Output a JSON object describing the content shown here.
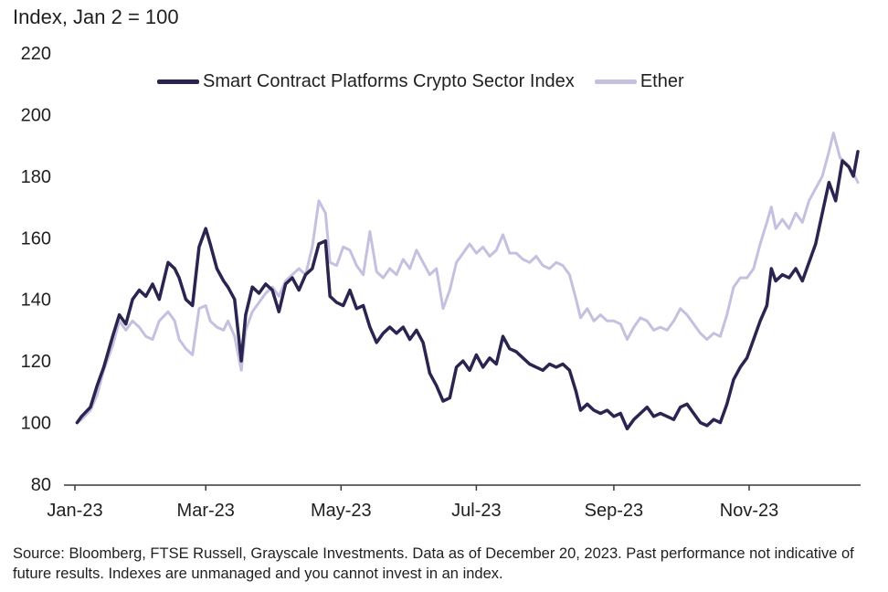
{
  "chart_data": {
    "type": "line",
    "title": "",
    "ylabel": "Index, Jan 2 = 100",
    "xlabel": "",
    "ylim": [
      80,
      220
    ],
    "yticks": [
      80,
      100,
      120,
      140,
      160,
      180,
      200,
      220
    ],
    "xlim": [
      "2023-01-02",
      "2023-12-20"
    ],
    "xticks": [
      {
        "date": "2023-01-01",
        "label": "Jan-23"
      },
      {
        "date": "2023-03-01",
        "label": "Mar-23"
      },
      {
        "date": "2023-05-01",
        "label": "May-23"
      },
      {
        "date": "2023-07-01",
        "label": "Jul-23"
      },
      {
        "date": "2023-09-01",
        "label": "Sep-23"
      },
      {
        "date": "2023-11-01",
        "label": "Nov-23"
      }
    ],
    "grid": false,
    "legend_position": "top",
    "series": [
      {
        "name": "Smart Contract Platforms Crypto Sector Index",
        "color": "#2a2550",
        "points": [
          [
            "2023-01-02",
            100
          ],
          [
            "2023-01-04",
            102
          ],
          [
            "2023-01-08",
            105
          ],
          [
            "2023-01-11",
            112
          ],
          [
            "2023-01-14",
            118
          ],
          [
            "2023-01-18",
            128
          ],
          [
            "2023-01-21",
            135
          ],
          [
            "2023-01-24",
            132
          ],
          [
            "2023-01-27",
            140
          ],
          [
            "2023-01-30",
            143
          ],
          [
            "2023-02-02",
            141
          ],
          [
            "2023-02-05",
            145
          ],
          [
            "2023-02-08",
            140
          ],
          [
            "2023-02-12",
            152
          ],
          [
            "2023-02-15",
            150
          ],
          [
            "2023-02-17",
            147
          ],
          [
            "2023-02-20",
            140
          ],
          [
            "2023-02-23",
            138
          ],
          [
            "2023-02-26",
            157
          ],
          [
            "2023-03-01",
            163
          ],
          [
            "2023-03-03",
            158
          ],
          [
            "2023-03-06",
            150
          ],
          [
            "2023-03-09",
            146
          ],
          [
            "2023-03-11",
            144
          ],
          [
            "2023-03-14",
            140
          ],
          [
            "2023-03-17",
            120
          ],
          [
            "2023-03-19",
            135
          ],
          [
            "2023-03-22",
            144
          ],
          [
            "2023-03-25",
            142
          ],
          [
            "2023-03-28",
            145
          ],
          [
            "2023-03-31",
            143
          ],
          [
            "2023-04-03",
            136
          ],
          [
            "2023-04-06",
            145
          ],
          [
            "2023-04-09",
            147
          ],
          [
            "2023-04-12",
            143
          ],
          [
            "2023-04-15",
            148
          ],
          [
            "2023-04-18",
            150
          ],
          [
            "2023-04-21",
            158
          ],
          [
            "2023-04-24",
            159
          ],
          [
            "2023-04-26",
            141
          ],
          [
            "2023-04-29",
            139
          ],
          [
            "2023-05-02",
            138
          ],
          [
            "2023-05-05",
            143
          ],
          [
            "2023-05-08",
            137
          ],
          [
            "2023-05-11",
            138
          ],
          [
            "2023-05-14",
            131
          ],
          [
            "2023-05-17",
            126
          ],
          [
            "2023-05-20",
            129
          ],
          [
            "2023-05-23",
            131
          ],
          [
            "2023-05-26",
            129
          ],
          [
            "2023-05-29",
            131
          ],
          [
            "2023-06-01",
            127
          ],
          [
            "2023-06-04",
            130
          ],
          [
            "2023-06-07",
            126
          ],
          [
            "2023-06-10",
            116
          ],
          [
            "2023-06-13",
            112
          ],
          [
            "2023-06-16",
            107
          ],
          [
            "2023-06-19",
            108
          ],
          [
            "2023-06-22",
            118
          ],
          [
            "2023-06-25",
            120
          ],
          [
            "2023-06-28",
            117
          ],
          [
            "2023-07-01",
            122
          ],
          [
            "2023-07-04",
            118
          ],
          [
            "2023-07-07",
            121
          ],
          [
            "2023-07-10",
            119
          ],
          [
            "2023-07-13",
            128
          ],
          [
            "2023-07-16",
            124
          ],
          [
            "2023-07-19",
            123
          ],
          [
            "2023-07-22",
            121
          ],
          [
            "2023-07-25",
            119
          ],
          [
            "2023-07-28",
            118
          ],
          [
            "2023-07-31",
            117
          ],
          [
            "2023-08-03",
            119
          ],
          [
            "2023-08-06",
            118
          ],
          [
            "2023-08-09",
            119
          ],
          [
            "2023-08-12",
            117
          ],
          [
            "2023-08-15",
            110
          ],
          [
            "2023-08-17",
            104
          ],
          [
            "2023-08-20",
            106
          ],
          [
            "2023-08-23",
            104
          ],
          [
            "2023-08-26",
            103
          ],
          [
            "2023-08-29",
            104
          ],
          [
            "2023-09-01",
            102
          ],
          [
            "2023-09-04",
            103
          ],
          [
            "2023-09-07",
            98
          ],
          [
            "2023-09-10",
            101
          ],
          [
            "2023-09-13",
            103
          ],
          [
            "2023-09-16",
            105
          ],
          [
            "2023-09-19",
            102
          ],
          [
            "2023-09-22",
            103
          ],
          [
            "2023-09-25",
            102
          ],
          [
            "2023-09-28",
            101
          ],
          [
            "2023-10-01",
            105
          ],
          [
            "2023-10-04",
            106
          ],
          [
            "2023-10-07",
            103
          ],
          [
            "2023-10-10",
            100
          ],
          [
            "2023-10-13",
            99
          ],
          [
            "2023-10-16",
            101
          ],
          [
            "2023-10-19",
            100
          ],
          [
            "2023-10-22",
            106
          ],
          [
            "2023-10-25",
            114
          ],
          [
            "2023-10-28",
            118
          ],
          [
            "2023-10-31",
            121
          ],
          [
            "2023-11-03",
            127
          ],
          [
            "2023-11-06",
            133
          ],
          [
            "2023-11-09",
            138
          ],
          [
            "2023-11-11",
            150
          ],
          [
            "2023-11-13",
            146
          ],
          [
            "2023-11-16",
            148
          ],
          [
            "2023-11-19",
            147
          ],
          [
            "2023-11-22",
            150
          ],
          [
            "2023-11-25",
            146
          ],
          [
            "2023-11-28",
            152
          ],
          [
            "2023-12-01",
            158
          ],
          [
            "2023-12-04",
            168
          ],
          [
            "2023-12-07",
            178
          ],
          [
            "2023-12-10",
            172
          ],
          [
            "2023-12-13",
            185
          ],
          [
            "2023-12-16",
            183
          ],
          [
            "2023-12-18",
            180
          ],
          [
            "2023-12-20",
            188
          ]
        ]
      },
      {
        "name": "Ether",
        "color": "#c5c0e0",
        "points": [
          [
            "2023-01-02",
            100
          ],
          [
            "2023-01-04",
            101
          ],
          [
            "2023-01-08",
            104
          ],
          [
            "2023-01-11",
            109
          ],
          [
            "2023-01-14",
            117
          ],
          [
            "2023-01-18",
            125
          ],
          [
            "2023-01-21",
            133
          ],
          [
            "2023-01-24",
            130
          ],
          [
            "2023-01-27",
            133
          ],
          [
            "2023-01-30",
            131
          ],
          [
            "2023-02-02",
            128
          ],
          [
            "2023-02-05",
            127
          ],
          [
            "2023-02-08",
            133
          ],
          [
            "2023-02-12",
            136
          ],
          [
            "2023-02-15",
            133
          ],
          [
            "2023-02-17",
            127
          ],
          [
            "2023-02-20",
            124
          ],
          [
            "2023-02-23",
            122
          ],
          [
            "2023-02-26",
            137
          ],
          [
            "2023-03-01",
            138
          ],
          [
            "2023-03-03",
            133
          ],
          [
            "2023-03-06",
            131
          ],
          [
            "2023-03-09",
            130
          ],
          [
            "2023-03-11",
            133
          ],
          [
            "2023-03-14",
            128
          ],
          [
            "2023-03-17",
            117
          ],
          [
            "2023-03-19",
            130
          ],
          [
            "2023-03-22",
            136
          ],
          [
            "2023-03-25",
            139
          ],
          [
            "2023-03-28",
            142
          ],
          [
            "2023-03-31",
            144
          ],
          [
            "2023-04-03",
            141
          ],
          [
            "2023-04-06",
            146
          ],
          [
            "2023-04-09",
            148
          ],
          [
            "2023-04-12",
            150
          ],
          [
            "2023-04-15",
            148
          ],
          [
            "2023-04-18",
            157
          ],
          [
            "2023-04-21",
            172
          ],
          [
            "2023-04-24",
            168
          ],
          [
            "2023-04-26",
            152
          ],
          [
            "2023-04-29",
            151
          ],
          [
            "2023-05-02",
            157
          ],
          [
            "2023-05-05",
            156
          ],
          [
            "2023-05-08",
            151
          ],
          [
            "2023-05-11",
            148
          ],
          [
            "2023-05-14",
            162
          ],
          [
            "2023-05-17",
            149
          ],
          [
            "2023-05-20",
            147
          ],
          [
            "2023-05-23",
            150
          ],
          [
            "2023-05-26",
            148
          ],
          [
            "2023-05-29",
            153
          ],
          [
            "2023-06-01",
            150
          ],
          [
            "2023-06-04",
            156
          ],
          [
            "2023-06-07",
            152
          ],
          [
            "2023-06-10",
            148
          ],
          [
            "2023-06-13",
            150
          ],
          [
            "2023-06-16",
            137
          ],
          [
            "2023-06-19",
            143
          ],
          [
            "2023-06-22",
            152
          ],
          [
            "2023-06-25",
            155
          ],
          [
            "2023-06-28",
            158
          ],
          [
            "2023-07-01",
            155
          ],
          [
            "2023-07-04",
            157
          ],
          [
            "2023-07-07",
            154
          ],
          [
            "2023-07-10",
            156
          ],
          [
            "2023-07-13",
            161
          ],
          [
            "2023-07-16",
            155
          ],
          [
            "2023-07-19",
            155
          ],
          [
            "2023-07-22",
            153
          ],
          [
            "2023-07-25",
            152
          ],
          [
            "2023-07-28",
            154
          ],
          [
            "2023-07-31",
            151
          ],
          [
            "2023-08-03",
            150
          ],
          [
            "2023-08-06",
            152
          ],
          [
            "2023-08-09",
            151
          ],
          [
            "2023-08-12",
            148
          ],
          [
            "2023-08-15",
            140
          ],
          [
            "2023-08-17",
            134
          ],
          [
            "2023-08-20",
            137
          ],
          [
            "2023-08-23",
            133
          ],
          [
            "2023-08-26",
            135
          ],
          [
            "2023-08-29",
            133
          ],
          [
            "2023-09-01",
            133
          ],
          [
            "2023-09-04",
            132
          ],
          [
            "2023-09-07",
            127
          ],
          [
            "2023-09-10",
            131
          ],
          [
            "2023-09-13",
            134
          ],
          [
            "2023-09-16",
            133
          ],
          [
            "2023-09-19",
            130
          ],
          [
            "2023-09-22",
            131
          ],
          [
            "2023-09-25",
            130
          ],
          [
            "2023-09-28",
            133
          ],
          [
            "2023-10-01",
            137
          ],
          [
            "2023-10-04",
            135
          ],
          [
            "2023-10-07",
            132
          ],
          [
            "2023-10-10",
            129
          ],
          [
            "2023-10-13",
            127
          ],
          [
            "2023-10-16",
            129
          ],
          [
            "2023-10-19",
            128
          ],
          [
            "2023-10-22",
            135
          ],
          [
            "2023-10-25",
            144
          ],
          [
            "2023-10-28",
            147
          ],
          [
            "2023-10-31",
            147
          ],
          [
            "2023-11-03",
            150
          ],
          [
            "2023-11-06",
            158
          ],
          [
            "2023-11-09",
            165
          ],
          [
            "2023-11-11",
            170
          ],
          [
            "2023-11-13",
            163
          ],
          [
            "2023-11-16",
            166
          ],
          [
            "2023-11-19",
            163
          ],
          [
            "2023-11-22",
            168
          ],
          [
            "2023-11-25",
            165
          ],
          [
            "2023-11-28",
            172
          ],
          [
            "2023-12-01",
            176
          ],
          [
            "2023-12-04",
            180
          ],
          [
            "2023-12-07",
            188
          ],
          [
            "2023-12-09",
            194
          ],
          [
            "2023-12-12",
            186
          ],
          [
            "2023-12-15",
            184
          ],
          [
            "2023-12-18",
            181
          ],
          [
            "2023-12-20",
            178
          ]
        ]
      }
    ]
  },
  "footer": {
    "source": "Source: Bloomberg, FTSE Russell, Grayscale Investments. Data as of December 20, 2023. Past performance not indicative of future results. Indexes are unmanaged and you cannot invest in an index."
  }
}
